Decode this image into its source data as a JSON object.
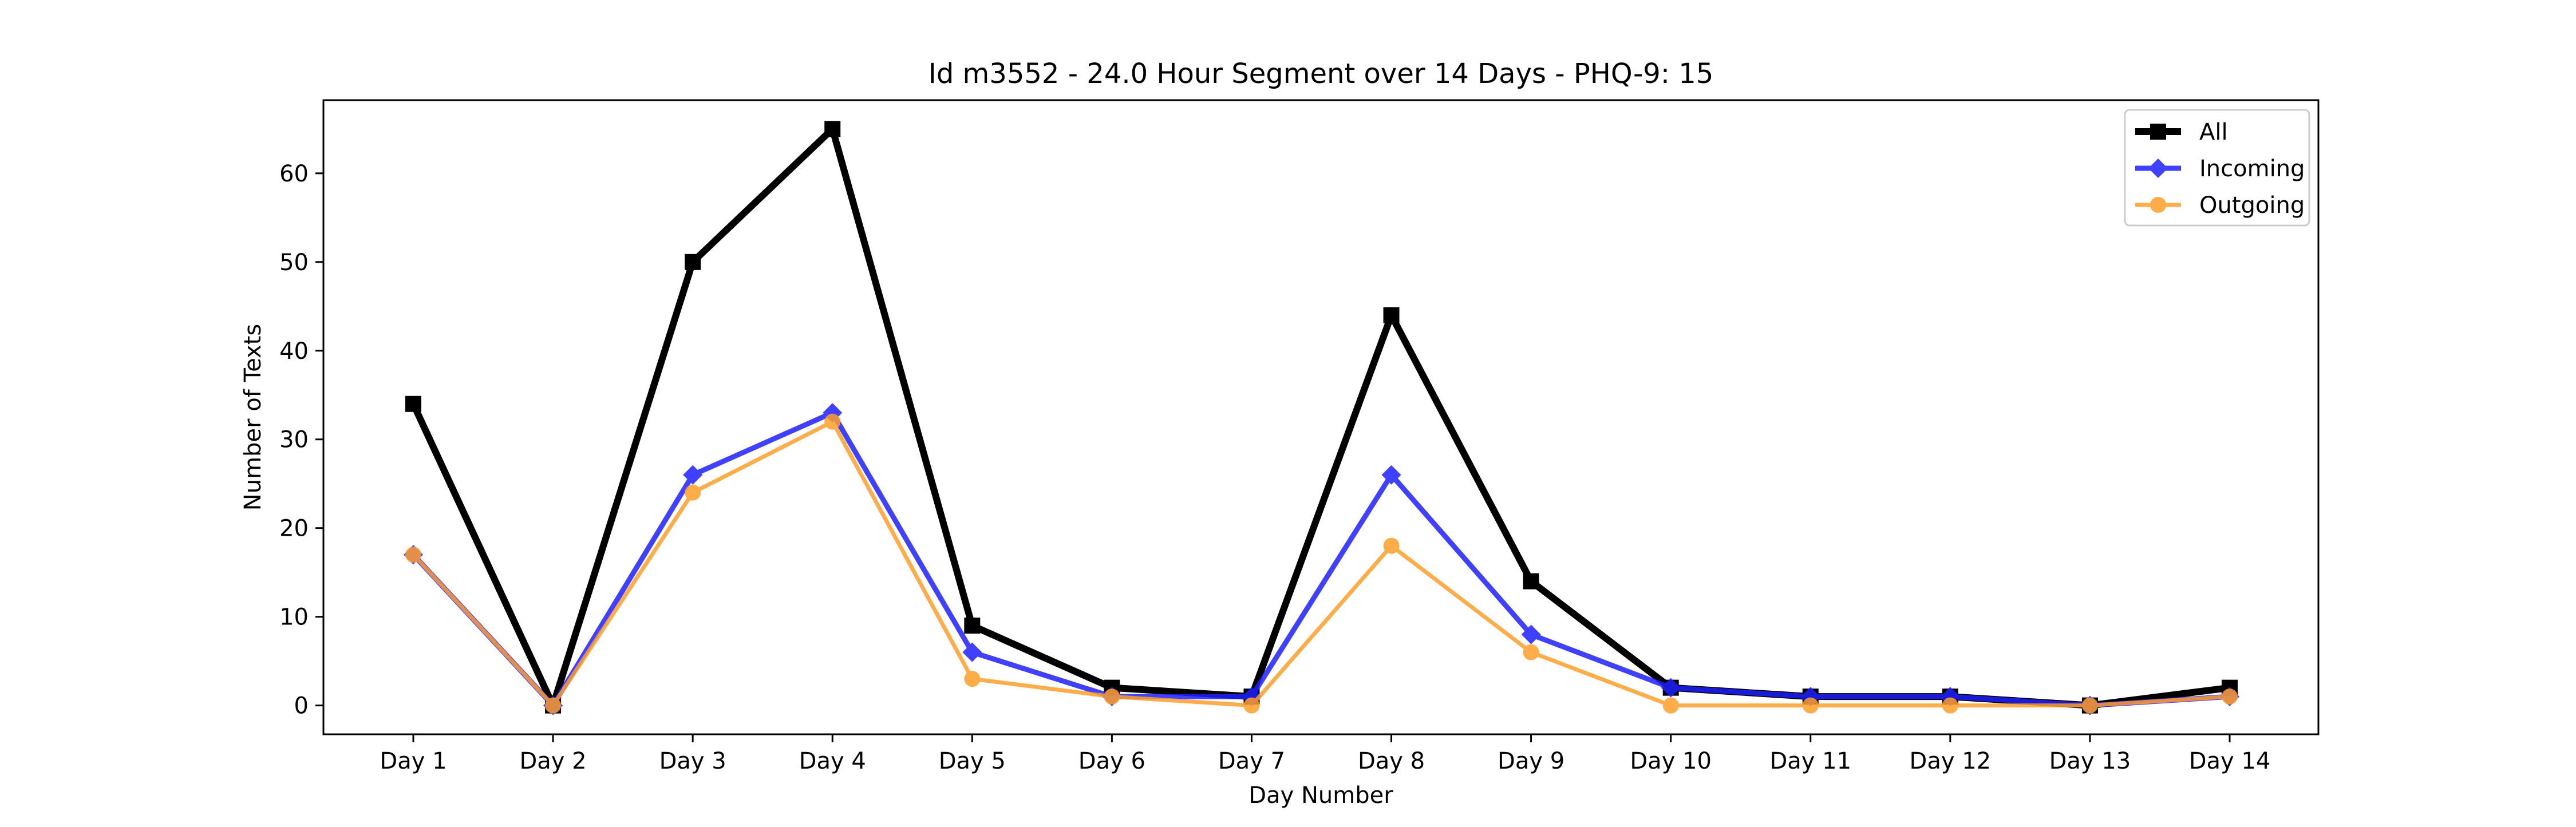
{
  "chart_data": {
    "type": "line",
    "title": "Id m3552 - 24.0 Hour Segment over 14 Days - PHQ-9: 15",
    "xlabel": "Day Number",
    "ylabel": "Number of Texts",
    "categories": [
      "Day 1",
      "Day 2",
      "Day 3",
      "Day 4",
      "Day 5",
      "Day 6",
      "Day 7",
      "Day 8",
      "Day 9",
      "Day 10",
      "Day 11",
      "Day 12",
      "Day 13",
      "Day 14"
    ],
    "ylim": [
      -3.25,
      68.25
    ],
    "yticks": [
      0,
      10,
      20,
      30,
      40,
      50,
      60
    ],
    "grid": false,
    "legend_position": "top-right",
    "series": [
      {
        "name": "All",
        "color": "#000000",
        "marker": "square",
        "values": [
          34,
          0,
          50,
          65,
          9,
          2,
          1,
          44,
          14,
          2,
          1,
          1,
          0,
          2
        ]
      },
      {
        "name": "Incoming",
        "color": "#1f1fff",
        "marker": "diamond",
        "values": [
          17,
          0,
          26,
          33,
          6,
          1,
          1,
          26,
          8,
          2,
          1,
          1,
          0,
          1
        ]
      },
      {
        "name": "Outgoing",
        "color": "#ff9f2a",
        "marker": "circle",
        "values": [
          17,
          0,
          24,
          32,
          3,
          1,
          0,
          18,
          6,
          0,
          0,
          0,
          0,
          1
        ]
      }
    ]
  }
}
